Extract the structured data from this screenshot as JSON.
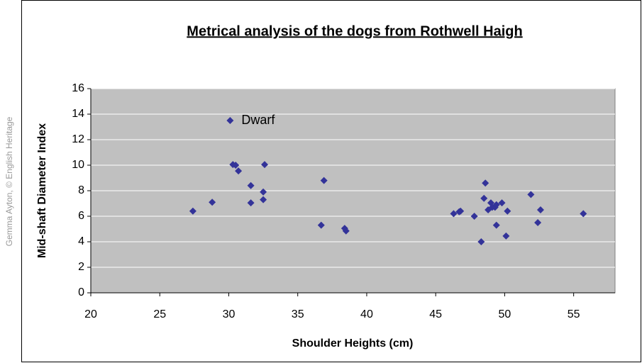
{
  "chart_data": {
    "type": "scatter",
    "title": "Metrical analysis of the dogs from Rothwell Haigh",
    "credit": "Gemma Ayton, © English Heritage",
    "annotation": "Dwarf",
    "xlabel": "Shoulder Heights (cm)",
    "ylabel": "Mid-shaft Diameter Index",
    "color": "#333399",
    "x": [
      30.1,
      28.8,
      27.4,
      30.3,
      30.5,
      30.7,
      31.6,
      31.6,
      32.6,
      32.5,
      32.5,
      36.9,
      36.7,
      38.4,
      38.5,
      46.3,
      46.7,
      46.8,
      47.8,
      48.3,
      48.6,
      48.5,
      48.8,
      49.0,
      49.1,
      49.3,
      49.4,
      49.4,
      49.8,
      50.1,
      50.2,
      51.9,
      52.4,
      52.6,
      55.7
    ],
    "values": [
      13.5,
      7.1,
      6.4,
      10.05,
      10.0,
      9.55,
      8.4,
      7.05,
      10.05,
      7.9,
      7.3,
      8.8,
      5.3,
      5.05,
      4.85,
      6.2,
      6.35,
      6.4,
      6.0,
      4.0,
      8.6,
      7.4,
      6.5,
      7.05,
      6.7,
      6.7,
      5.3,
      6.9,
      7.05,
      4.45,
      6.4,
      7.7,
      5.5,
      6.5,
      6.2
    ],
    "xlim": [
      20,
      58
    ],
    "xticks": [
      20,
      25,
      30,
      35,
      40,
      45,
      50,
      55
    ],
    "ylim": [
      0,
      16
    ],
    "yticks": [
      0,
      2,
      4,
      6,
      8,
      10,
      12,
      14,
      16
    ],
    "grid": true
  }
}
